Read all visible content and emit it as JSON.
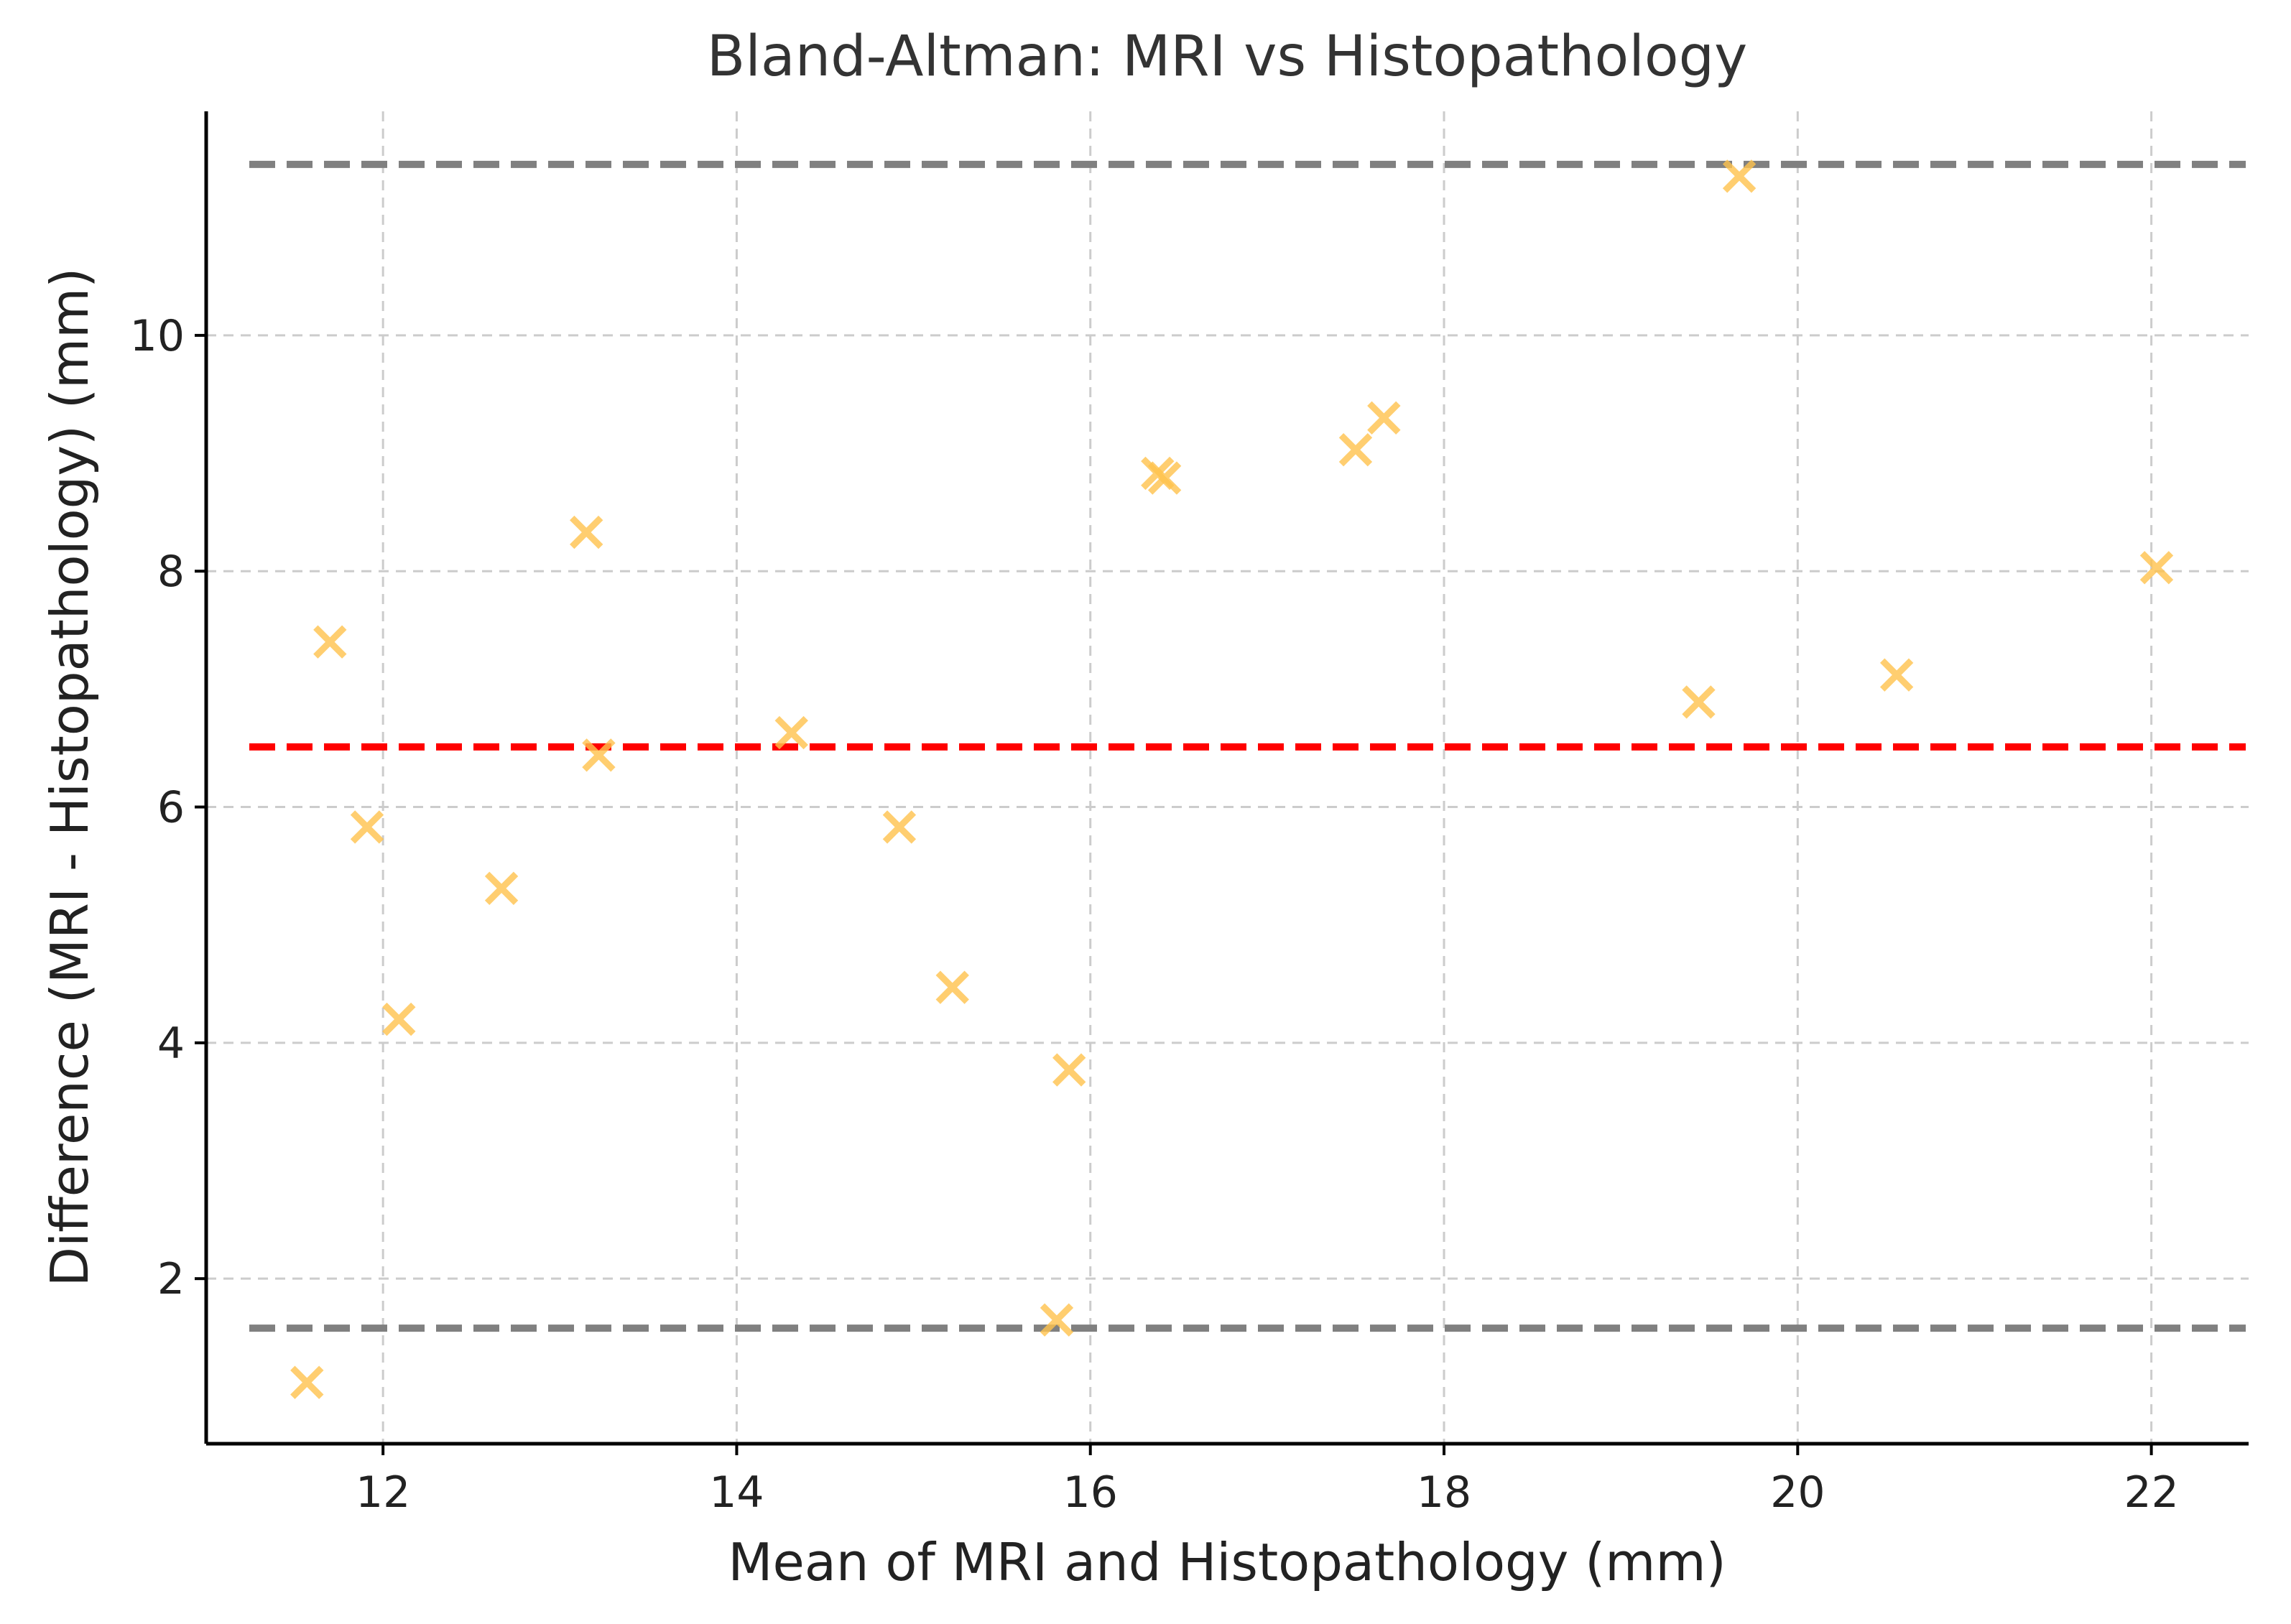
{
  "chart_data": {
    "type": "scatter",
    "title": "Bland-Altman: MRI vs Histopathology",
    "xlabel": "Mean of MRI and Histopathology (mm)",
    "ylabel": "Difference (MRI - Histopathology) (mm)",
    "xlim": [
      11.0,
      22.55
    ],
    "ylim": [
      0.6,
      11.9
    ],
    "xticks": [
      12,
      14,
      16,
      18,
      20,
      22
    ],
    "yticks": [
      2,
      4,
      6,
      8,
      10
    ],
    "grid": true,
    "marker": "x",
    "marker_color": "#ffc34d",
    "points": [
      {
        "x": 11.57,
        "y": 1.12
      },
      {
        "x": 11.7,
        "y": 7.4
      },
      {
        "x": 11.91,
        "y": 5.83
      },
      {
        "x": 12.09,
        "y": 4.2
      },
      {
        "x": 12.67,
        "y": 5.31
      },
      {
        "x": 13.15,
        "y": 8.33
      },
      {
        "x": 13.22,
        "y": 6.44
      },
      {
        "x": 14.31,
        "y": 6.63
      },
      {
        "x": 14.92,
        "y": 5.83
      },
      {
        "x": 15.22,
        "y": 4.47
      },
      {
        "x": 15.81,
        "y": 1.65
      },
      {
        "x": 15.88,
        "y": 3.77
      },
      {
        "x": 16.38,
        "y": 8.83
      },
      {
        "x": 16.42,
        "y": 8.79
      },
      {
        "x": 17.5,
        "y": 9.03
      },
      {
        "x": 17.66,
        "y": 9.3
      },
      {
        "x": 19.44,
        "y": 6.89
      },
      {
        "x": 19.67,
        "y": 11.35
      },
      {
        "x": 20.56,
        "y": 7.12
      },
      {
        "x": 22.03,
        "y": 8.03
      }
    ],
    "reference_lines": [
      {
        "name": "mean-difference-line",
        "y": 6.51,
        "color": "#ff0000"
      },
      {
        "name": "upper-limit-line",
        "y": 11.45,
        "color": "#808080"
      },
      {
        "name": "lower-limit-line",
        "y": 1.58,
        "color": "#808080"
      }
    ]
  }
}
